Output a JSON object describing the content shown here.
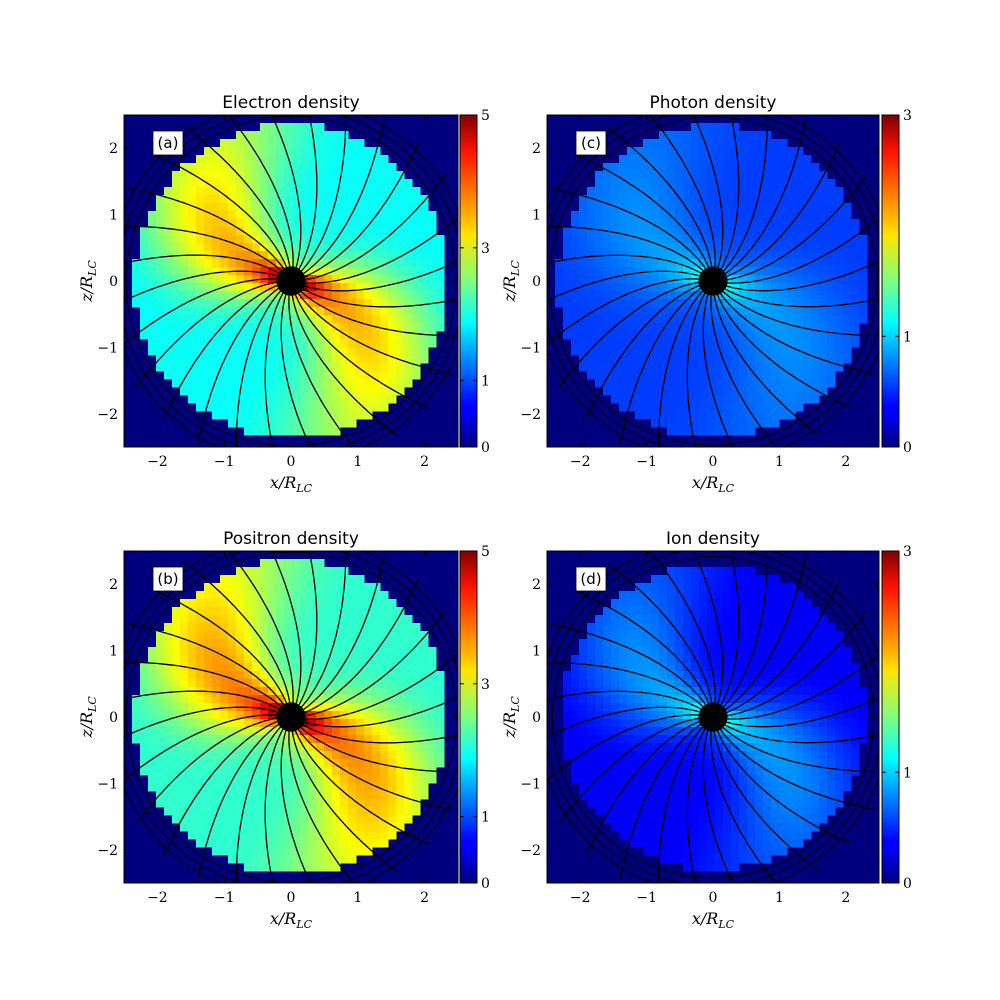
{
  "chart_data": [
    {
      "type": "heatmap",
      "panel": "(a)",
      "title": "Electron density",
      "xlabel": "x/R_LC",
      "ylabel": "z/R_LC",
      "xlim": [
        -2.5,
        2.5
      ],
      "ylim": [
        -2.5,
        2.5
      ],
      "xticks": [
        -2,
        -1,
        0,
        1,
        2
      ],
      "yticks": [
        -2,
        -1,
        0,
        1,
        2
      ],
      "colorbar": {
        "min": 0,
        "max": 5,
        "ticks": [
          0,
          1,
          3,
          5
        ]
      },
      "field": {
        "background": "#00007f",
        "disk_radius": 2.35,
        "star_radius": 0.22,
        "base_level": 1.9,
        "lobe_level": 3.4,
        "inner_level": 4.6,
        "tilt_deg": -30
      }
    },
    {
      "type": "heatmap",
      "panel": "(b)",
      "title": "Positron density",
      "xlabel": "x/R_LC",
      "ylabel": "z/R_LC",
      "xlim": [
        -2.5,
        2.5
      ],
      "ylim": [
        -2.5,
        2.5
      ],
      "xticks": [
        -2,
        -1,
        0,
        1,
        2
      ],
      "yticks": [
        -2,
        -1,
        0,
        1,
        2
      ],
      "colorbar": {
        "min": 0,
        "max": 5,
        "ticks": [
          0,
          1,
          3,
          5
        ]
      },
      "field": {
        "background": "#00007f",
        "disk_radius": 2.35,
        "star_radius": 0.22,
        "base_level": 2.1,
        "lobe_level": 3.6,
        "inner_level": 4.7,
        "tilt_deg": -30
      }
    },
    {
      "type": "heatmap",
      "panel": "(c)",
      "title": "Photon density",
      "xlabel": "x/R_LC",
      "ylabel": "z/R_LC",
      "xlim": [
        -2.5,
        2.5
      ],
      "ylim": [
        -2.5,
        2.5
      ],
      "xticks": [
        -2,
        -1,
        0,
        1,
        2
      ],
      "yticks": [
        -2,
        -1,
        0,
        1,
        2
      ],
      "colorbar": {
        "min": 0,
        "max": 3,
        "ticks": [
          0,
          1,
          3
        ]
      },
      "field": {
        "background": "#00007f",
        "disk_radius": 2.35,
        "star_radius": 0.22,
        "base_level": 0.55,
        "lobe_level": 0.8,
        "inner_level": 1.2,
        "tilt_deg": -30
      }
    },
    {
      "type": "heatmap",
      "panel": "(d)",
      "title": "Ion density",
      "xlabel": "x/R_LC",
      "ylabel": "z/R_LC",
      "xlim": [
        -2.5,
        2.5
      ],
      "ylim": [
        -2.5,
        2.5
      ],
      "xticks": [
        -2,
        -1,
        0,
        1,
        2
      ],
      "yticks": [
        -2,
        -1,
        0,
        1,
        2
      ],
      "colorbar": {
        "min": 0,
        "max": 3,
        "ticks": [
          0,
          1,
          3
        ]
      },
      "field": {
        "background": "#00007f",
        "disk_radius": 2.3,
        "star_radius": 0.22,
        "base_level": 0.35,
        "lobe_level": 0.8,
        "inner_level": 1.1,
        "tilt_deg": -30
      }
    }
  ]
}
